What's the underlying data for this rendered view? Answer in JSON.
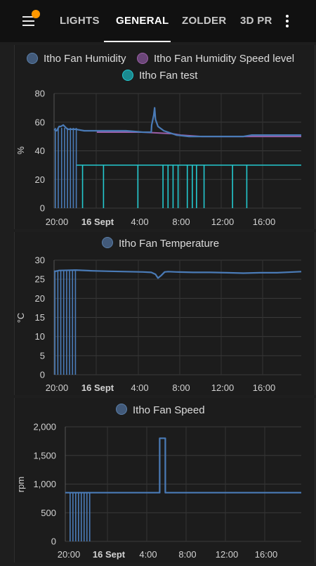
{
  "tabs": [
    {
      "label": "LIGHTS",
      "active": false
    },
    {
      "label": "GENERAL",
      "active": true
    },
    {
      "label": "ZOLDER",
      "active": false
    },
    {
      "label": "3D PR",
      "active": false
    }
  ],
  "icons": {
    "menu": "menu-icon",
    "notification": "notification-dot-icon",
    "more": "more-vertical-icon"
  },
  "colors": {
    "header_bg": "#111111",
    "humidity": "#4a7bb7",
    "speed_level": "#9c5fa8",
    "test": "#24c9cf",
    "temperature": "#4a7bb7",
    "fan_speed": "#4a7bb7",
    "notification": "#ff9800"
  },
  "chart_data": [
    {
      "type": "line",
      "legend": [
        "Itho Fan Humidity",
        "Itho Fan Humidity Speed level",
        "Itho Fan test"
      ],
      "ylabel": "%",
      "ylim": [
        0,
        80
      ],
      "yticks": [
        "0",
        "20",
        "40",
        "60",
        "80"
      ],
      "xticks": [
        "20:00",
        "16 Sept",
        "4:00",
        "8:00",
        "12:00",
        "16:00"
      ],
      "xlim_hours": [
        19.4,
        19.5
      ],
      "series": [
        {
          "name": "Itho Fan Humidity",
          "x": [
            19.4,
            19.7,
            20.0,
            20.2,
            20.5,
            21.0,
            22.0,
            23.0,
            24.0,
            26.0,
            28.0,
            30.0,
            31.0,
            31.05,
            31.3,
            31.4,
            31.5,
            31.8,
            32.5,
            34.0,
            35.5,
            36.0,
            38.0,
            40.0,
            42.0,
            43.0,
            44.0,
            46.0,
            48.0,
            48.9
          ],
          "y": [
            55,
            54,
            57,
            57,
            58,
            55,
            55,
            54,
            54,
            54,
            54,
            53,
            53,
            58,
            65,
            70,
            62,
            57,
            54,
            51,
            50,
            50,
            50,
            50,
            50,
            51,
            51,
            51,
            51,
            51
          ]
        },
        {
          "name": "Itho Fan Humidity Speed level",
          "x": [
            24.5,
            30.0,
            33.5,
            34.5,
            37.0,
            40.0,
            42.0,
            44.0,
            48.9
          ],
          "y": [
            53,
            53,
            52,
            51,
            50,
            50,
            50,
            50,
            50
          ]
        },
        {
          "name": "Itho Fan test",
          "baseline": 30,
          "drops_hours": [
            22.8,
            25.3,
            29.4,
            32.4,
            33.0,
            33.6,
            34.2,
            35.3,
            35.9,
            36.4,
            37.3,
            40.7,
            42.4
          ]
        }
      ],
      "initial_spikes_hours": [
        19.55,
        19.9,
        20.3,
        20.65,
        21.0,
        21.35,
        21.7,
        22.05
      ]
    },
    {
      "type": "line",
      "legend": [
        "Itho Fan Temperature"
      ],
      "ylabel": "°C",
      "ylim": [
        0,
        30
      ],
      "yticks": [
        "0",
        "5",
        "10",
        "15",
        "20",
        "25",
        "30"
      ],
      "xticks": [
        "20:00",
        "16 Sept",
        "4:00",
        "8:00",
        "12:00",
        "16:00"
      ],
      "series": [
        {
          "name": "Itho Fan Temperature",
          "x": [
            19.4,
            20.0,
            22.0,
            24.0,
            26.0,
            28.0,
            30.0,
            31.0,
            31.5,
            31.8,
            32.2,
            32.6,
            33.0,
            34.0,
            36.0,
            38.0,
            40.0,
            42.0,
            44.0,
            46.0,
            48.9
          ],
          "y": [
            27.0,
            27.3,
            27.4,
            27.2,
            27.1,
            27.0,
            26.9,
            26.8,
            26.3,
            25.3,
            26.0,
            26.9,
            27.0,
            26.9,
            26.8,
            26.8,
            26.7,
            26.6,
            26.7,
            26.7,
            27.0
          ]
        }
      ],
      "initial_spikes_hours": [
        19.5,
        19.85,
        20.2,
        20.55,
        20.9,
        21.25,
        21.6,
        21.95
      ]
    },
    {
      "type": "line",
      "legend": [
        "Itho Fan Speed"
      ],
      "ylabel": "rpm",
      "ylim": [
        0,
        2000
      ],
      "yticks": [
        "0",
        "500",
        "1,000",
        "1,500",
        "2,000"
      ],
      "xticks": [
        "20:00",
        "16 Sept",
        "4:00",
        "8:00",
        "12:00",
        "16:00"
      ],
      "series": [
        {
          "name": "Itho Fan Speed",
          "x": [
            19.4,
            31.2,
            31.2,
            31.9,
            31.9,
            48.9
          ],
          "y": [
            850,
            850,
            1800,
            1800,
            850,
            850
          ]
        }
      ],
      "initial_spikes_hours": [
        20.0,
        20.35,
        20.7,
        21.05,
        21.4,
        21.75,
        22.1,
        22.45
      ]
    }
  ]
}
